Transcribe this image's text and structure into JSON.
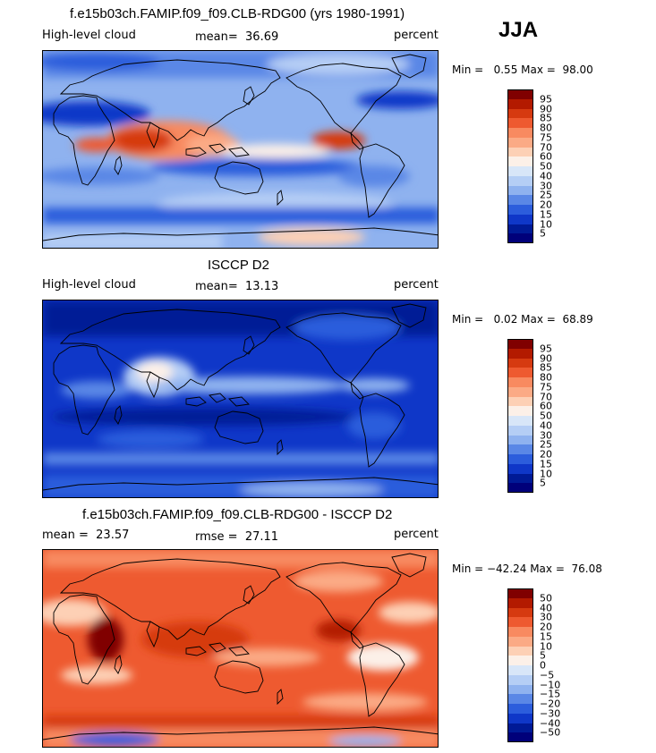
{
  "season": "JJA",
  "panels": [
    {
      "title": "f.e15b03ch.FAMIP.f09_f09.CLB-RDG00 (yrs 1980-1991)",
      "left_label": "High-level cloud",
      "center_label": "mean=  36.69",
      "right_label": "percent",
      "minmax": "Min =   0.55 Max =  98.00",
      "colorbar": {
        "colors": [
          "#800000",
          "#b31a00",
          "#d63a10",
          "#ee5a30",
          "#f88a60",
          "#fbaa85",
          "#fdd0b5",
          "#fcf0e8",
          "#d8e6f8",
          "#b5cef5",
          "#8fb2ef",
          "#5a87e6",
          "#2c5ddc",
          "#0f37c8",
          "#001a96",
          "#00007a"
        ],
        "ticks": [
          "95",
          "90",
          "85",
          "80",
          "75",
          "70",
          "60",
          "50",
          "40",
          "30",
          "25",
          "20",
          "15",
          "10",
          "5"
        ]
      }
    },
    {
      "title": "ISCCP D2",
      "left_label": "High-level cloud",
      "center_label": "mean=  13.13",
      "right_label": "percent",
      "minmax": "Min =   0.02 Max =  68.89",
      "colorbar": {
        "colors": [
          "#800000",
          "#b31a00",
          "#d63a10",
          "#ee5a30",
          "#f88a60",
          "#fbaa85",
          "#fdd0b5",
          "#fcf0e8",
          "#d8e6f8",
          "#b5cef5",
          "#8fb2ef",
          "#5a87e6",
          "#2c5ddc",
          "#0f37c8",
          "#001a96",
          "#00007a"
        ],
        "ticks": [
          "95",
          "90",
          "85",
          "80",
          "75",
          "70",
          "60",
          "50",
          "40",
          "30",
          "25",
          "20",
          "15",
          "10",
          "5"
        ]
      }
    },
    {
      "title": "f.e15b03ch.FAMIP.f09_f09.CLB-RDG00 - ISCCP D2",
      "left_label": "mean =  23.57",
      "center_label": "rmse =  27.11",
      "right_label": "percent",
      "minmax": "Min = −42.24 Max =  76.08",
      "colorbar": {
        "colors": [
          "#800000",
          "#b31a00",
          "#d63a10",
          "#ee5a30",
          "#f88a60",
          "#fbaa85",
          "#fdd0b5",
          "#fcf0e8",
          "#d8e6f8",
          "#b5cef5",
          "#8fb2ef",
          "#5a87e6",
          "#2c5ddc",
          "#0f37c8",
          "#001a96",
          "#00007a"
        ],
        "ticks": [
          "50",
          "40",
          "30",
          "20",
          "15",
          "10",
          "5",
          "0",
          "−5",
          "−10",
          "−15",
          "−20",
          "−30",
          "−40",
          "−50"
        ]
      }
    }
  ]
}
